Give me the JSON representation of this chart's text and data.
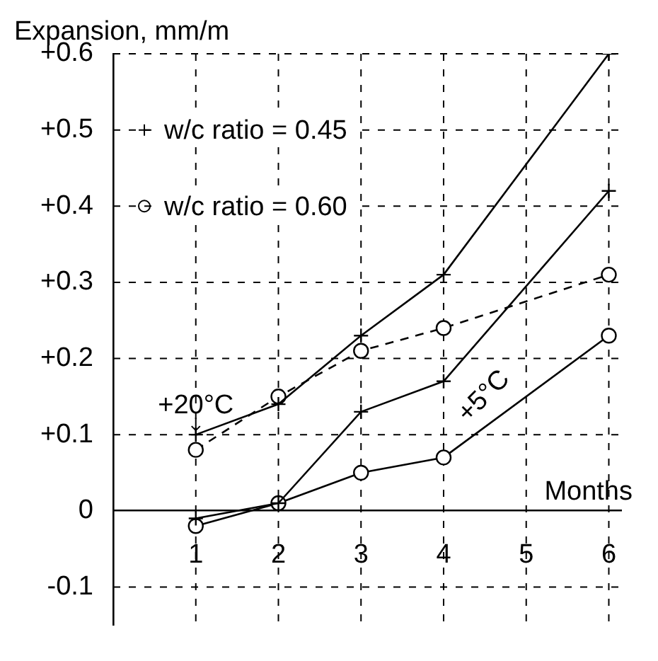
{
  "chart_data": {
    "type": "line",
    "ylabel": "Expansion, mm/m",
    "xlabel": "Months",
    "x": [
      1,
      2,
      3,
      4,
      6
    ],
    "xlim": [
      0,
      6.15
    ],
    "xticks": [
      1,
      2,
      3,
      4,
      5,
      6
    ],
    "ylim": [
      -0.15,
      0.6
    ],
    "yticks": [
      {
        "value": 0.6,
        "label": "+0.6"
      },
      {
        "value": 0.5,
        "label": "+0.5"
      },
      {
        "value": 0.4,
        "label": "+0.4"
      },
      {
        "value": 0.3,
        "label": "+0.3"
      },
      {
        "value": 0.2,
        "label": "+0.2"
      },
      {
        "value": 0.1,
        "label": "+0.1"
      },
      0,
      -0.1
    ],
    "grid": true,
    "legend": "top left",
    "series": [
      {
        "name": "w/c ratio = 0.45",
        "color": "#000000",
        "marker": "cross",
        "line_style": "solid",
        "values": [
          0.1,
          0.14,
          0.23,
          0.31,
          0.6
        ]
      },
      {
        "name": "w/c ratio = 0.60",
        "color": "#000000",
        "marker": "circle",
        "line_style": "dashed",
        "values": [
          0.08,
          0.15,
          0.21,
          0.24,
          0.31
        ]
      },
      {
        "color": "#000000",
        "marker": "cross",
        "line_style": "solid",
        "values": [
          -0.01,
          0.01,
          0.13,
          0.17,
          0.42
        ]
      },
      {
        "color": "#000000",
        "marker": "circle",
        "line_style": "solid",
        "values": [
          -0.02,
          0.01,
          0.05,
          0.07,
          0.23
        ]
      }
    ],
    "annotations": [
      {
        "text": "+20°C",
        "x": 1,
        "y": 0.1
      },
      "+5°C"
    ]
  }
}
